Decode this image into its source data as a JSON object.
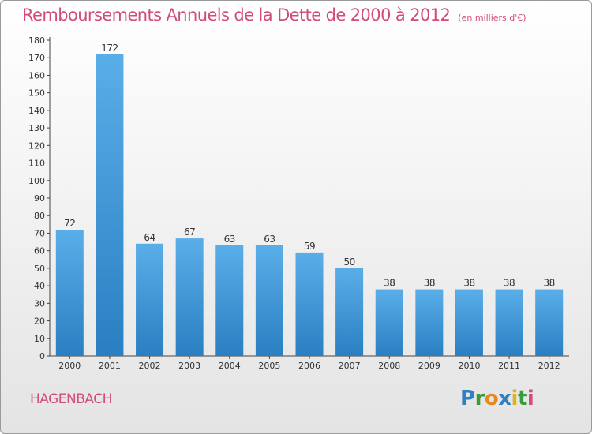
{
  "header": {
    "title": "Remboursements Annuels de la Dette de 2000 à 2012",
    "unit": "(en milliers d'€)"
  },
  "footer": {
    "commune": "HAGENBACH",
    "logo_letters": [
      {
        "ch": "P",
        "color": "#2f7fc4"
      },
      {
        "ch": "r",
        "color": "#3a9b3a"
      },
      {
        "ch": "o",
        "color": "#e58a1f"
      },
      {
        "ch": "x",
        "color": "#2f7fc4"
      },
      {
        "ch": "i",
        "color": "#e0b020"
      },
      {
        "ch": "t",
        "color": "#3a9b3a"
      },
      {
        "ch": "i",
        "color": "#d24b7a"
      }
    ]
  },
  "chart_data": {
    "type": "bar",
    "categories": [
      "2000",
      "2001",
      "2002",
      "2003",
      "2004",
      "2005",
      "2006",
      "2007",
      "2008",
      "2009",
      "2010",
      "2011",
      "2012"
    ],
    "values": [
      72,
      172,
      64,
      67,
      63,
      63,
      59,
      50,
      38,
      38,
      38,
      38,
      38
    ],
    "ylim": [
      0,
      180
    ],
    "ytick_step": 10,
    "bar_color_top": "#5aaee8",
    "bar_color_bottom": "#2a7fc2",
    "grid": false
  }
}
